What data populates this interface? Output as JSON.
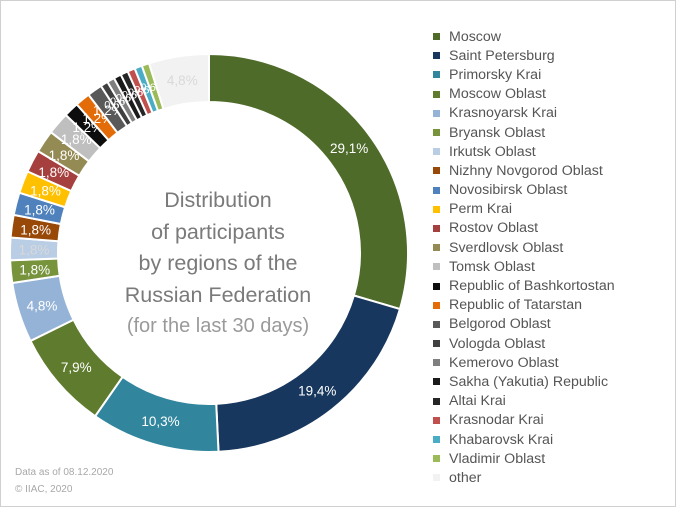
{
  "chart_data": {
    "type": "pie",
    "title": "Distribution of participants by regions of the Russian Federation",
    "title_lines": [
      "Distribution",
      "of participants",
      "by regions of the",
      "Russian Federation"
    ],
    "subtitle": "(for the last 30 days)",
    "legend_position": "right",
    "slices": [
      {
        "name": "Moscow",
        "value": 29.1,
        "label": "29,1%",
        "color": "#4e6b2a"
      },
      {
        "name": "Saint Petersburg",
        "value": 19.4,
        "label": "19,4%",
        "color": "#17375e"
      },
      {
        "name": "Primorsky Krai",
        "value": 10.3,
        "label": "10,3%",
        "color": "#31859c"
      },
      {
        "name": "Moscow Oblast",
        "value": 7.9,
        "label": "7,9%",
        "color": "#5e7b2e"
      },
      {
        "name": "Krasnoyarsk Krai",
        "value": 4.8,
        "label": "4,8%",
        "color": "#95b3d7"
      },
      {
        "name": "Bryansk Oblast",
        "value": 1.8,
        "label": "1,8%",
        "color": "#77933c"
      },
      {
        "name": "Irkutsk Oblast",
        "value": 1.8,
        "label": "1,8%",
        "color": "#b9cde5"
      },
      {
        "name": "Nizhny Novgorod Oblast",
        "value": 1.8,
        "label": "1,8%",
        "color": "#984807"
      },
      {
        "name": "Novosibirsk Oblast",
        "value": 1.8,
        "label": "1,8%",
        "color": "#4f81bd"
      },
      {
        "name": "Perm Krai",
        "value": 1.8,
        "label": "1,8%",
        "color": "#ffc000"
      },
      {
        "name": "Rostov Oblast",
        "value": 1.8,
        "label": "1,8%",
        "color": "#a5403e"
      },
      {
        "name": "Sverdlovsk Oblast",
        "value": 1.8,
        "label": "1,8%",
        "color": "#948a54"
      },
      {
        "name": "Tomsk Oblast",
        "value": 1.8,
        "label": "1,8%",
        "color": "#bfbfbf"
      },
      {
        "name": "Republic of Bashkortostan",
        "value": 1.2,
        "label": "1,2%",
        "color": "#0d0d0d"
      },
      {
        "name": "Republic of Tatarstan",
        "value": 1.2,
        "label": "1,2%",
        "color": "#e36c09"
      },
      {
        "name": "Belgorod Oblast",
        "value": 1.2,
        "label": "1,2%",
        "color": "#595959"
      },
      {
        "name": "Vologda Oblast",
        "value": 0.6,
        "label": "0,6%",
        "color": "#404040"
      },
      {
        "name": "Kemerovo Oblast",
        "value": 0.6,
        "label": "0,6%",
        "color": "#7f7f7f"
      },
      {
        "name": "Sakha (Yakutia) Republic",
        "value": 0.6,
        "label": "0,6%",
        "color": "#1a1a1a"
      },
      {
        "name": "Altai Krai",
        "value": 0.6,
        "label": "0,6%",
        "color": "#262626"
      },
      {
        "name": "Krasnodar Krai",
        "value": 0.6,
        "label": "0,6%",
        "color": "#c0504d"
      },
      {
        "name": "Khabarovsk Krai",
        "value": 0.6,
        "label": "0,6%",
        "color": "#4bacc6"
      },
      {
        "name": "Vladimir Oblast",
        "value": 0.6,
        "label": "0,6%",
        "color": "#9bbb59"
      },
      {
        "name": "other",
        "value": 4.8,
        "label": "4,8%",
        "color": "#f2f2f2"
      }
    ]
  },
  "footnote": {
    "date": "Data as of 08.12.2020",
    "copyright": "© IIAC, 2020"
  }
}
